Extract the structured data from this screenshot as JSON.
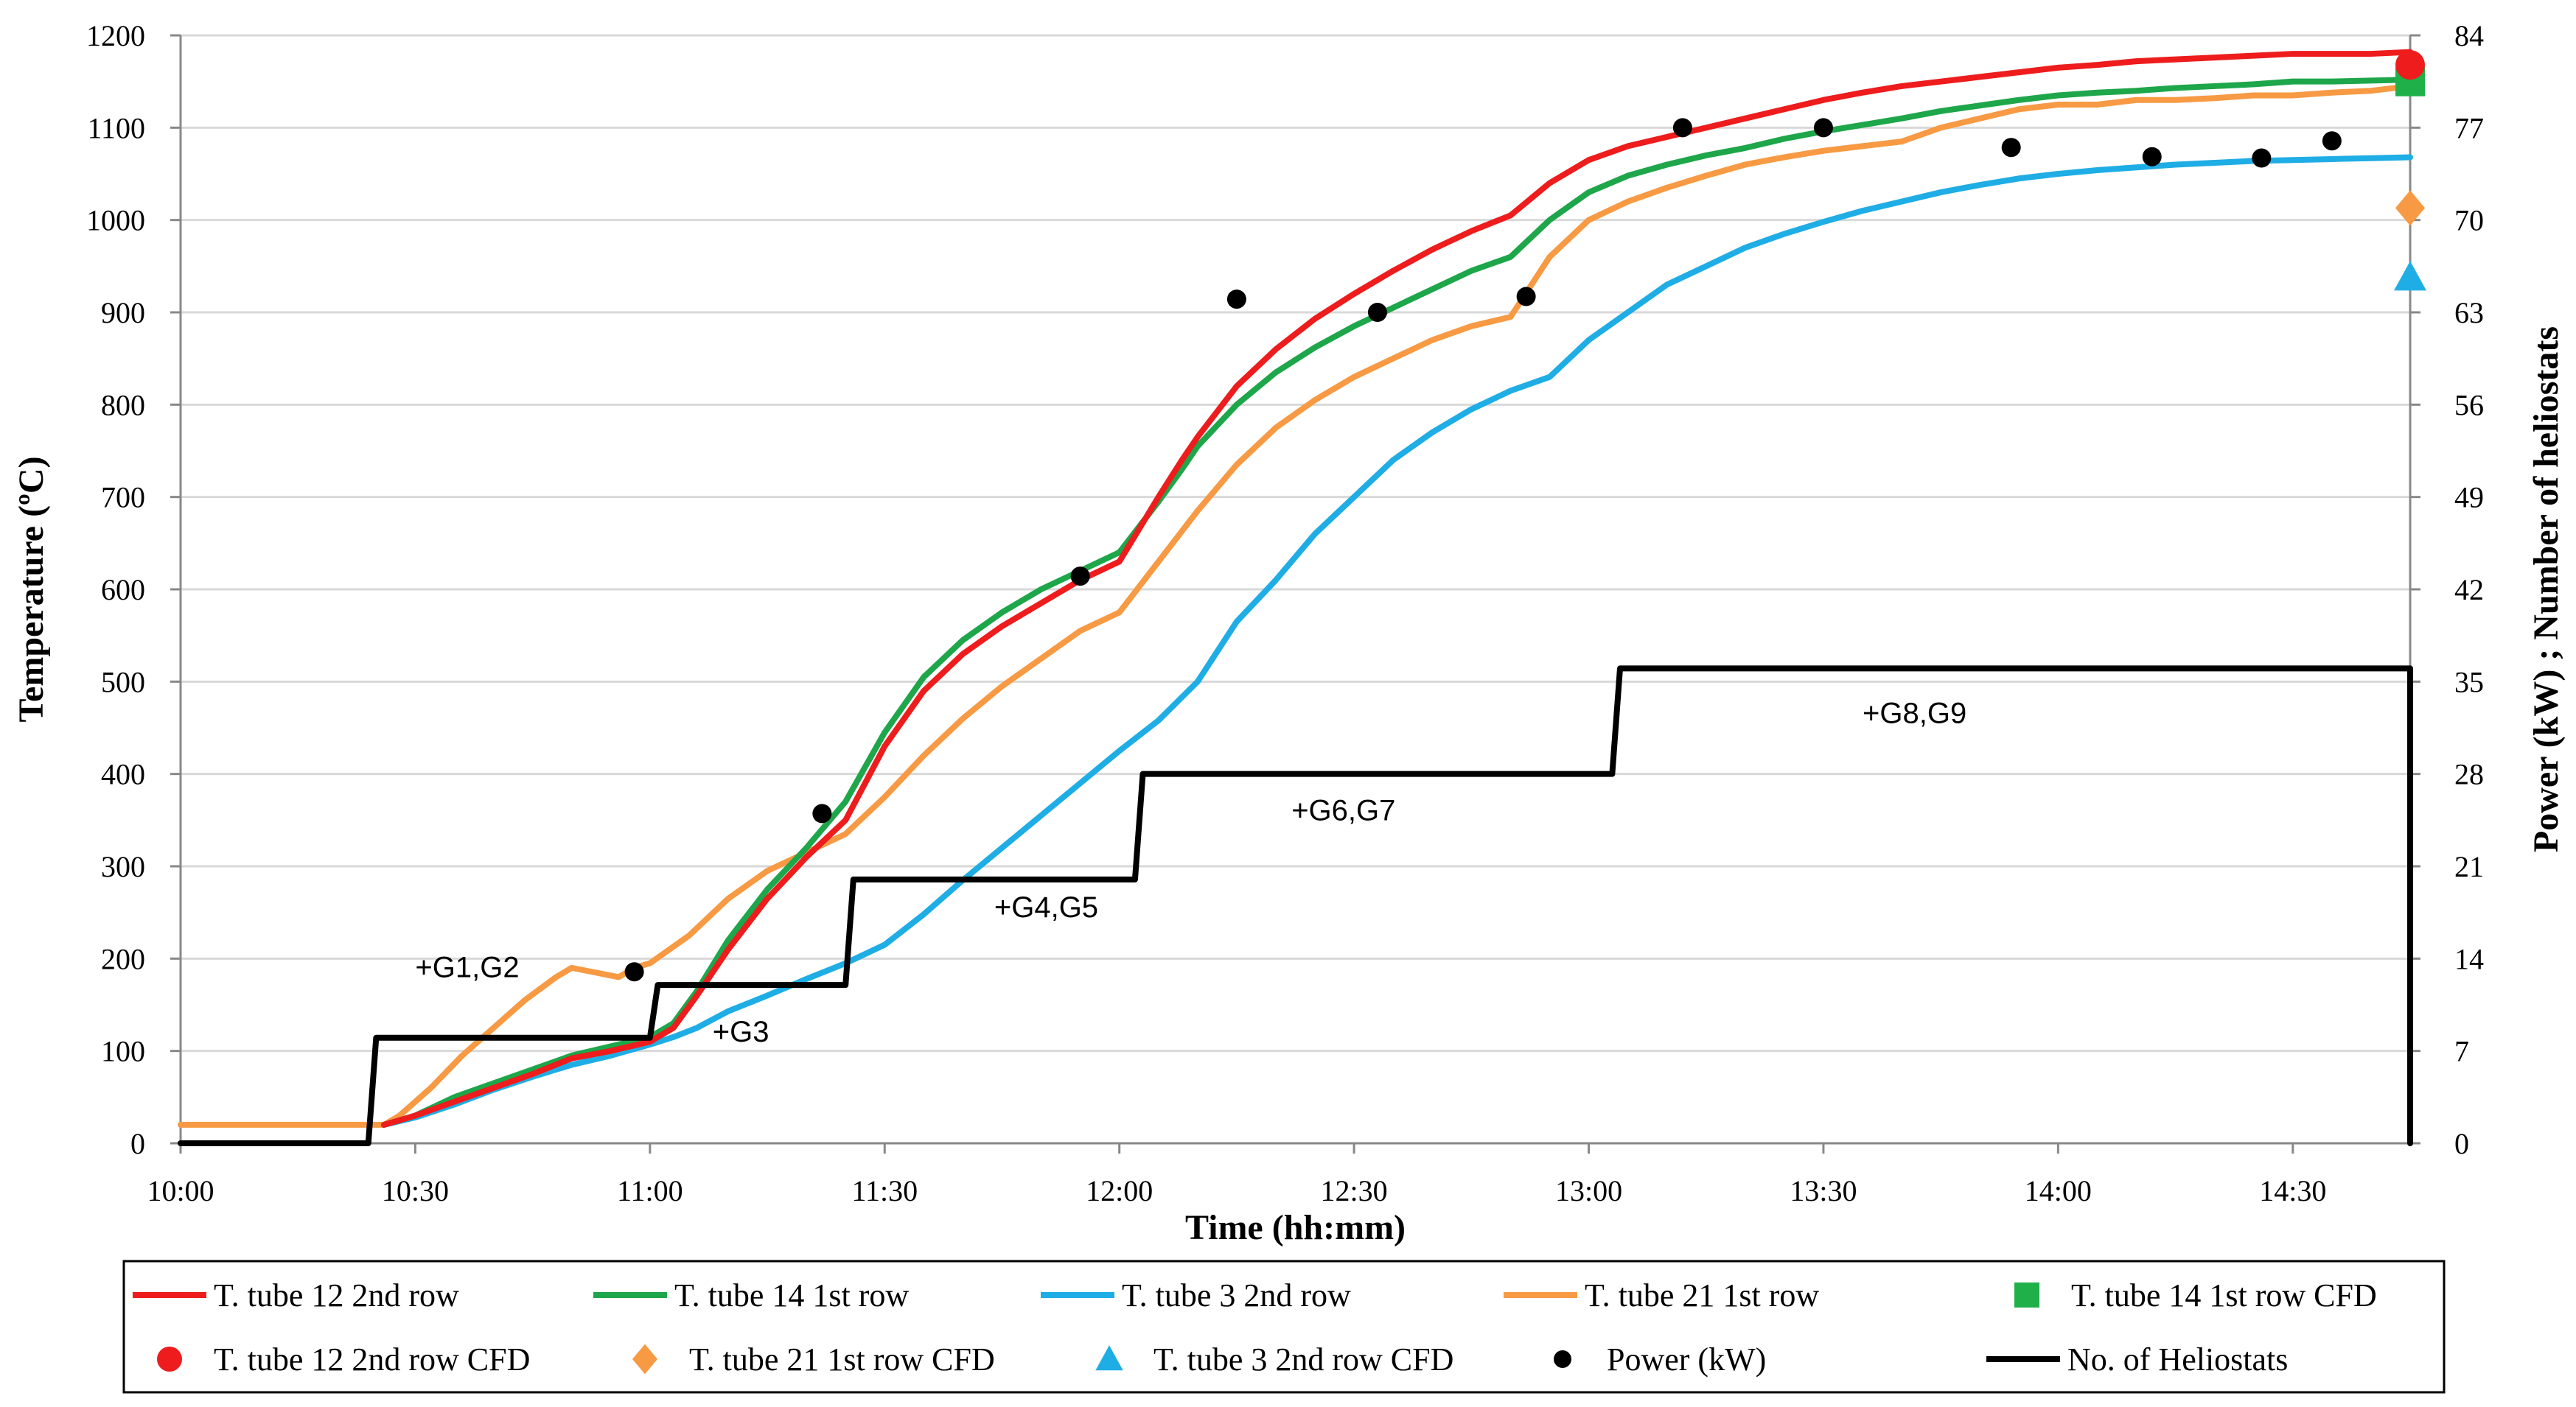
{
  "chart_data": {
    "type": "line",
    "title": "",
    "xlabel": "Time (hh:mm)",
    "ylabel": "Temperature (ºC)",
    "y2label": "Power (kW) ; Number of heliostats",
    "x_ticks": [
      "10:00",
      "10:30",
      "11:00",
      "11:30",
      "12:00",
      "12:30",
      "13:00",
      "13:30",
      "14:00",
      "14:30"
    ],
    "xlim_minutes": [
      0,
      285
    ],
    "ylim": [
      0,
      1200
    ],
    "y_ticks": [
      0,
      100,
      200,
      300,
      400,
      500,
      600,
      700,
      800,
      900,
      1000,
      1100,
      1200
    ],
    "y2lim": [
      0,
      84
    ],
    "y2_ticks": [
      0,
      7,
      14,
      21,
      28,
      35,
      42,
      49,
      56,
      63,
      70,
      77,
      84
    ],
    "grid": "horizontal",
    "legend_position": "bottom",
    "series": [
      {
        "name": "T. tube 12 2nd row",
        "kind": "line",
        "axis": "left",
        "color": "#ee1c1c",
        "x": [
          26,
          30,
          35,
          40,
          45,
          50,
          55,
          60,
          63,
          66,
          70,
          75,
          80,
          85,
          90,
          95,
          100,
          105,
          110,
          115,
          120,
          125,
          128,
          130,
          135,
          140,
          145,
          150,
          155,
          160,
          165,
          170,
          175,
          180,
          185,
          190,
          195,
          200,
          205,
          210,
          215,
          220,
          225,
          230,
          235,
          240,
          245,
          250,
          255,
          260,
          265,
          270,
          275,
          280,
          285
        ],
        "values": [
          20,
          30,
          45,
          60,
          75,
          92,
          100,
          110,
          125,
          160,
          210,
          265,
          310,
          350,
          430,
          490,
          530,
          560,
          585,
          610,
          630,
          700,
          740,
          765,
          820,
          860,
          893,
          920,
          945,
          968,
          988,
          1005,
          1040,
          1065,
          1080,
          1090,
          1100,
          1110,
          1120,
          1130,
          1138,
          1145,
          1150,
          1155,
          1160,
          1165,
          1168,
          1172,
          1174,
          1176,
          1178,
          1180,
          1180,
          1180,
          1182
        ]
      },
      {
        "name": "T. tube 14 1st row",
        "kind": "line",
        "axis": "left",
        "color": "#1ea64a",
        "x": [
          26,
          30,
          35,
          40,
          45,
          50,
          55,
          60,
          63,
          66,
          70,
          75,
          80,
          85,
          90,
          95,
          100,
          105,
          110,
          115,
          120,
          125,
          128,
          130,
          135,
          140,
          145,
          150,
          155,
          160,
          165,
          170,
          175,
          180,
          185,
          190,
          195,
          200,
          205,
          210,
          215,
          220,
          225,
          230,
          235,
          240,
          245,
          250,
          255,
          260,
          265,
          270,
          275,
          280,
          285
        ],
        "values": [
          20,
          30,
          50,
          65,
          80,
          95,
          105,
          115,
          130,
          165,
          220,
          275,
          320,
          370,
          445,
          505,
          545,
          575,
          600,
          620,
          640,
          695,
          730,
          755,
          800,
          835,
          862,
          885,
          905,
          925,
          945,
          960,
          1000,
          1030,
          1048,
          1060,
          1070,
          1078,
          1088,
          1096,
          1103,
          1110,
          1118,
          1124,
          1130,
          1135,
          1138,
          1140,
          1143,
          1145,
          1147,
          1150,
          1150,
          1151,
          1152
        ]
      },
      {
        "name": "T. tube 3 2nd row",
        "kind": "line",
        "axis": "left",
        "color": "#1fade5",
        "x": [
          26,
          30,
          35,
          40,
          45,
          50,
          55,
          60,
          63,
          66,
          70,
          75,
          80,
          85,
          90,
          95,
          100,
          105,
          110,
          115,
          120,
          125,
          130,
          135,
          140,
          145,
          150,
          155,
          160,
          165,
          170,
          175,
          180,
          185,
          190,
          195,
          200,
          205,
          210,
          215,
          220,
          225,
          230,
          235,
          240,
          245,
          250,
          255,
          260,
          265,
          270,
          275,
          280,
          285
        ],
        "values": [
          20,
          28,
          42,
          58,
          72,
          85,
          95,
          107,
          115,
          125,
          143,
          160,
          178,
          195,
          215,
          248,
          285,
          320,
          355,
          390,
          425,
          458,
          500,
          565,
          610,
          660,
          700,
          740,
          770,
          795,
          815,
          830,
          870,
          900,
          930,
          950,
          970,
          985,
          998,
          1010,
          1020,
          1030,
          1038,
          1045,
          1050,
          1054,
          1057,
          1060,
          1062,
          1064,
          1065,
          1066,
          1067,
          1068
        ]
      },
      {
        "name": "T. tube 21 1st row",
        "kind": "line",
        "axis": "left",
        "color": "#f79a43",
        "x": [
          0,
          10,
          20,
          26,
          28,
          32,
          36,
          40,
          44,
          48,
          50,
          53,
          56,
          58,
          60,
          65,
          70,
          75,
          80,
          85,
          90,
          95,
          100,
          105,
          110,
          115,
          120,
          125,
          130,
          135,
          140,
          145,
          150,
          155,
          160,
          165,
          170,
          175,
          180,
          185,
          190,
          195,
          200,
          205,
          210,
          215,
          220,
          225,
          230,
          235,
          240,
          245,
          250,
          255,
          260,
          265,
          270,
          275,
          280,
          285
        ],
        "values": [
          20,
          20,
          20,
          20,
          30,
          60,
          95,
          125,
          155,
          180,
          190,
          185,
          180,
          190,
          195,
          225,
          265,
          295,
          315,
          335,
          375,
          420,
          460,
          495,
          525,
          555,
          575,
          630,
          685,
          735,
          775,
          805,
          830,
          850,
          870,
          885,
          895,
          960,
          1000,
          1020,
          1035,
          1048,
          1060,
          1068,
          1075,
          1080,
          1085,
          1100,
          1110,
          1120,
          1125,
          1125,
          1130,
          1130,
          1132,
          1135,
          1135,
          1138,
          1140,
          1145
        ]
      },
      {
        "name": "T. tube 14 1st row CFD",
        "kind": "marker",
        "marker": "square",
        "axis": "left",
        "color": "#1fb04a",
        "x": [
          285
        ],
        "values": [
          1150
        ]
      },
      {
        "name": "T. tube 12 2nd row CFD",
        "kind": "marker",
        "marker": "circle",
        "axis": "left",
        "color": "#ee1c1c",
        "x": [
          285
        ],
        "values": [
          1168
        ]
      },
      {
        "name": "T. tube 21 1st row CFD",
        "kind": "marker",
        "marker": "diamond",
        "axis": "left",
        "color": "#f79a43",
        "x": [
          285
        ],
        "values": [
          1013
        ]
      },
      {
        "name": "T. tube 3 2nd row CFD",
        "kind": "marker",
        "marker": "triangle",
        "axis": "left",
        "color": "#1fade5",
        "x": [
          285
        ],
        "values": [
          938
        ]
      },
      {
        "name": "Power (kW)",
        "kind": "scatter",
        "marker": "dot",
        "axis": "right",
        "color": "#000000",
        "x": [
          58,
          82,
          115,
          135,
          153,
          172,
          192,
          210,
          234,
          252,
          266,
          275
        ],
        "values": [
          13,
          25,
          43,
          64,
          63,
          64.2,
          77,
          77,
          75.5,
          74.8,
          74.7,
          76
        ]
      },
      {
        "name": "No. of Heliostats",
        "kind": "step",
        "axis": "right",
        "color": "#000000",
        "x": [
          0,
          24,
          25,
          60,
          61,
          85,
          86,
          122,
          123,
          183,
          184,
          285,
          285
        ],
        "values": [
          0,
          0,
          8,
          8,
          12,
          12,
          20,
          20,
          28,
          28,
          36,
          36,
          0
        ]
      }
    ],
    "annotations": [
      {
        "text": "+G1,G2",
        "x": 30,
        "y": 180
      },
      {
        "text": "+G3",
        "x": 68,
        "y": 110
      },
      {
        "text": "+G4,G5",
        "x": 104,
        "y": 245
      },
      {
        "text": "+G6,G7",
        "x": 142,
        "y": 350
      },
      {
        "text": "+G8,G9",
        "x": 215,
        "y": 455
      }
    ],
    "legend": [
      [
        "T. tube 12 2nd row",
        "T. tube 14 1st row",
        "T. tube 3 2nd row",
        "T. tube 21 1st row",
        "T. tube 14 1st row CFD"
      ],
      [
        "T. tube 12 2nd row CFD",
        "T. tube 21 1st row CFD",
        "T. tube 3 2nd row CFD",
        "Power (kW)",
        "No. of Heliostats"
      ]
    ]
  }
}
